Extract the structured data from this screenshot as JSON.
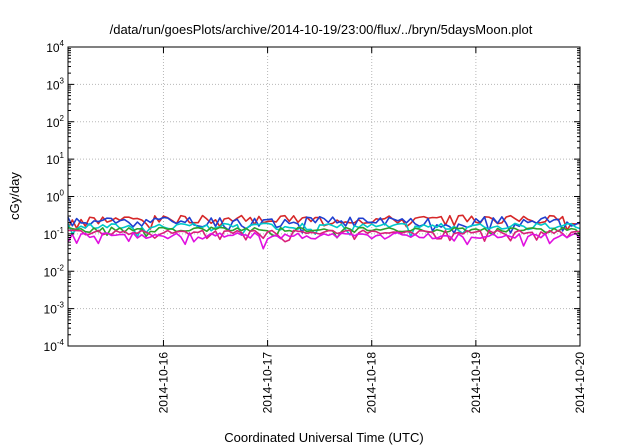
{
  "chart_data": {
    "type": "line",
    "title": "/data/run/goesPlots/archive/2014-10-19/23:00/flux/../bryn/5daysMoon.plot",
    "xlabel": "Coordinated Universal Time (UTC)",
    "ylabel": "cGy/day",
    "x_range": [
      "2014-10-15 02:00",
      "2014-10-20 00:00"
    ],
    "x_ticks": [
      "2014-10-16",
      "2014-10-17",
      "2014-10-18",
      "2014-10-19",
      "2014-10-20"
    ],
    "y_scale": "log",
    "y_range": [
      0.0001,
      10000
    ],
    "y_ticks": [
      {
        "base": "10",
        "exp": "4",
        "value": 10000
      },
      {
        "base": "10",
        "exp": "3",
        "value": 1000
      },
      {
        "base": "10",
        "exp": "2",
        "value": 100
      },
      {
        "base": "10",
        "exp": "1",
        "value": 10
      },
      {
        "base": "10",
        "exp": "0",
        "value": 1
      },
      {
        "base": "10",
        "exp": "-1",
        "value": 0.1
      },
      {
        "base": "10",
        "exp": "-2",
        "value": 0.01
      },
      {
        "base": "10",
        "exp": "-3",
        "value": 0.001
      },
      {
        "base": "10",
        "exp": "-4",
        "value": 0.0001
      }
    ],
    "grid": true,
    "samples_per_day": 24,
    "series": [
      {
        "color": "#d62728",
        "base": 0.25,
        "amp": 0.13,
        "seed": 3
      },
      {
        "color": "#1f3fd0",
        "base": 0.22,
        "amp": 0.16,
        "seed": 11
      },
      {
        "color": "#00c8c8",
        "base": 0.16,
        "amp": 0.1,
        "seed": 17
      },
      {
        "color": "#2ca02c",
        "base": 0.13,
        "amp": 0.08,
        "seed": 23
      },
      {
        "color": "#d9207a",
        "base": 0.11,
        "amp": 0.07,
        "seed": 29
      },
      {
        "color": "#e010e0",
        "base": 0.09,
        "amp": 0.1,
        "seed": 37
      }
    ],
    "dips": [
      {
        "series": 5,
        "time": "2014-10-16 23:00",
        "value": 0.04
      }
    ]
  }
}
